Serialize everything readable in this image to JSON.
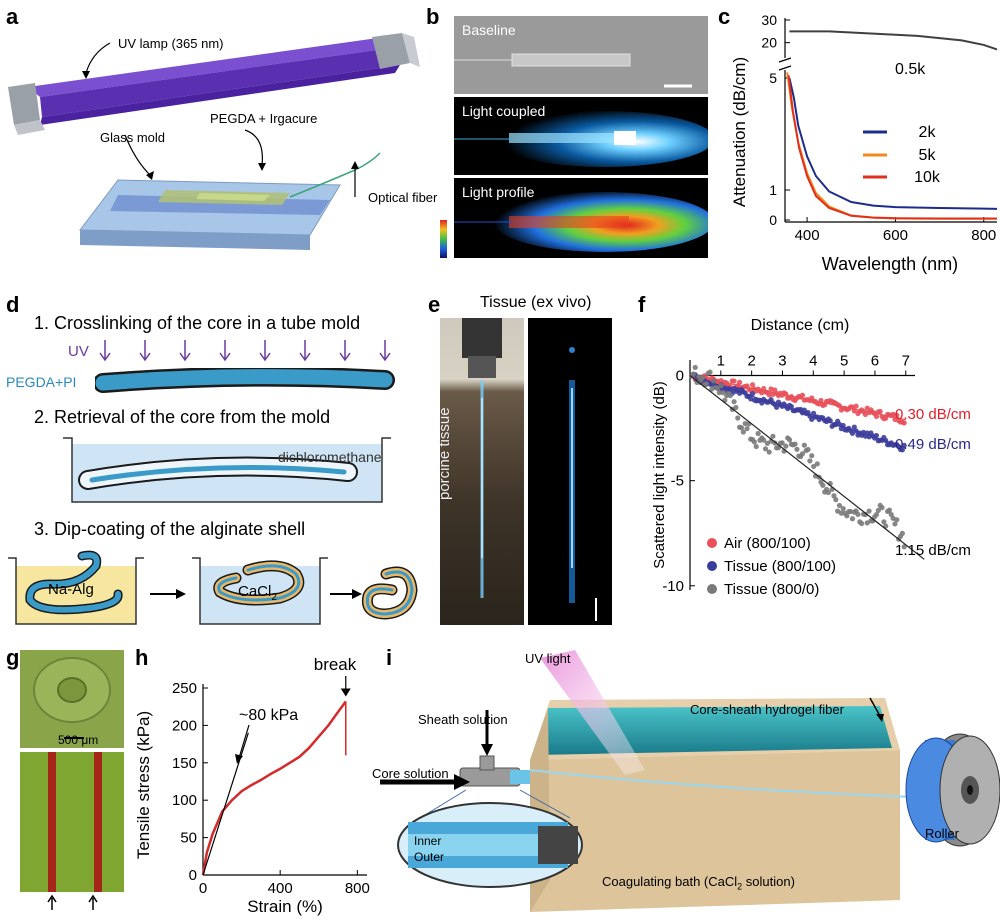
{
  "panels": {
    "a": "a",
    "b": "b",
    "c": "c",
    "d": "d",
    "e": "e",
    "f": "f",
    "g": "g",
    "h": "h",
    "i": "i"
  },
  "a": {
    "uv_lamp": "UV lamp (365 nm)",
    "pegda": "PEGDA + Irgacure",
    "glass_mold": "Glass mold",
    "optical_fiber": "Optical fiber"
  },
  "b": {
    "baseline": "Baseline",
    "light_coupled": "Light coupled",
    "light_profile": "Light profile"
  },
  "d": {
    "step1": "1. Crosslinking of the core in a tube mold",
    "uv": "UV",
    "pegda_pi": "PEGDA+PI",
    "step2": "2. Retrieval of the core from the mold",
    "dichloromethane": "dichloromethane",
    "step3": "3. Dip-coating of the alginate shell",
    "na_alg": "Na-Alg",
    "cacl": "CaCl",
    "cacl_sub": "2"
  },
  "e": {
    "title": "Tissue (ex vivo)",
    "porcine": "porcine tissue"
  },
  "g": {
    "scale": "500 μm"
  },
  "i": {
    "uv_light": "UV light",
    "sheath": "Sheath solution",
    "core": "Core solution",
    "fiber": "Core-sheath hydrogel fiber",
    "roller": "Roller",
    "inner": "Inner",
    "outer": "Outer",
    "bath_pre": "Coagulating bath (CaCl",
    "bath_sub": "2",
    "bath_post": " solution)"
  },
  "chart_data": [
    {
      "panel": "c",
      "type": "line",
      "xlabel": "Wavelength (nm)",
      "ylabel": "Attenuation (dB/cm)",
      "xlim": [
        350,
        830
      ],
      "xticks": [
        "400",
        "600",
        "800"
      ],
      "yticks_lower": [
        "0",
        "1",
        "5"
      ],
      "yticks_upper": [
        "20",
        "30"
      ],
      "axis_break": true,
      "series": [
        {
          "name": "0.5k",
          "color": "#404040",
          "x": [
            360,
            400,
            450,
            500,
            550,
            600,
            650,
            700,
            750,
            800,
            830
          ],
          "y": [
            25,
            25,
            25,
            24.5,
            24,
            23.5,
            23,
            22,
            21,
            19,
            17
          ]
        },
        {
          "name": "2k",
          "color": "#1c2c8c",
          "x": [
            360,
            370,
            380,
            400,
            420,
            450,
            500,
            550,
            600,
            700,
            800,
            830
          ],
          "y": [
            5.0,
            4.3,
            3.3,
            2.2,
            1.5,
            0.95,
            0.6,
            0.48,
            0.43,
            0.4,
            0.38,
            0.37
          ]
        },
        {
          "name": "5k",
          "color": "#f08a1c",
          "x": [
            355,
            365,
            380,
            400,
            420,
            450,
            500,
            550,
            600,
            700,
            800,
            830
          ],
          "y": [
            5.2,
            4.0,
            2.7,
            1.6,
            0.9,
            0.45,
            0.15,
            0.08,
            0.05,
            0.04,
            0.04,
            0.04
          ]
        },
        {
          "name": "10k",
          "color": "#e0301e",
          "x": [
            358,
            368,
            382,
            400,
            420,
            450,
            500,
            550,
            600,
            700,
            800,
            830
          ],
          "y": [
            5.1,
            3.8,
            2.5,
            1.5,
            0.8,
            0.4,
            0.14,
            0.08,
            0.06,
            0.05,
            0.05,
            0.05
          ]
        }
      ]
    },
    {
      "panel": "f",
      "type": "scatter",
      "xlabel": "Distance (cm)",
      "ylabel": "Scattered light intensity (dB)",
      "xlim": [
        0,
        7.3
      ],
      "ylim": [
        -10.2,
        0.5
      ],
      "xticks": [
        "1",
        "2",
        "3",
        "4",
        "5",
        "6",
        "7"
      ],
      "yticks": [
        "0",
        "-5",
        "-10"
      ],
      "series": [
        {
          "name": "Air (800/100)",
          "color": "#e8505a",
          "slope": -0.3,
          "fit_label": "0.30 dB/cm"
        },
        {
          "name": "Tissue (800/100)",
          "color": "#3c3c9c",
          "slope": -0.49,
          "fit_label": "0.49 dB/cm"
        },
        {
          "name": "Tissue (800/0)",
          "color": "#7a7a7a",
          "slope": -1.15,
          "fit_label": "1.15 dB/cm"
        }
      ]
    },
    {
      "panel": "h",
      "type": "line",
      "xlabel": "Strain (%)",
      "ylabel": "Tensile stress (kPa)",
      "xlim": [
        0,
        850
      ],
      "ylim": [
        0,
        250
      ],
      "xticks": [
        "0",
        "400",
        "800"
      ],
      "yticks": [
        "0",
        "50",
        "100",
        "150",
        "200",
        "250"
      ],
      "annotation_modulus": "~80 kPa",
      "annotation_break": "break",
      "series": [
        {
          "name": "",
          "color": "#d42a2a",
          "x": [
            0,
            20,
            50,
            100,
            150,
            200,
            250,
            300,
            350,
            400,
            450,
            500,
            550,
            600,
            650,
            700,
            740
          ],
          "y": [
            0,
            30,
            55,
            85,
            100,
            112,
            120,
            127,
            135,
            142,
            150,
            158,
            170,
            185,
            200,
            218,
            232
          ]
        }
      ]
    }
  ]
}
